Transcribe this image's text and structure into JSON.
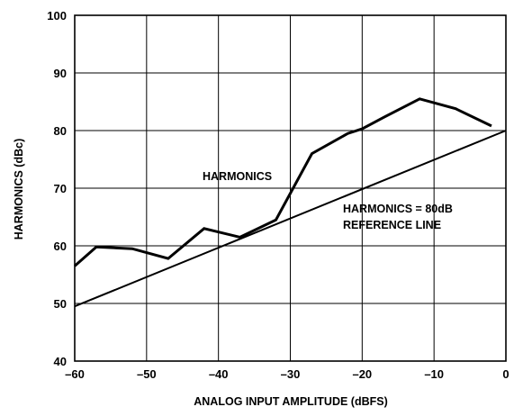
{
  "chart_data": {
    "type": "line",
    "title": "",
    "xlabel": "ANALOG INPUT AMPLITUDE (dBFS)",
    "ylabel": "HARMONICS (dBc)",
    "xlim": [
      -60,
      0
    ],
    "ylim": [
      40,
      100
    ],
    "x_ticks": [
      "–60",
      "–50",
      "–40",
      "–30",
      "–20",
      "–10",
      "0"
    ],
    "y_ticks": [
      "40",
      "50",
      "60",
      "70",
      "80",
      "90",
      "100"
    ],
    "grid": true,
    "legend": "none",
    "series": [
      {
        "label": "HARMONICS",
        "x": [
          -60,
          -57,
          -52,
          -47,
          -42,
          -37,
          -32,
          -27,
          -22,
          -20,
          -17,
          -12,
          -7,
          -2
        ],
        "y": [
          56.5,
          59.8,
          59.5,
          57.8,
          63.0,
          61.5,
          64.5,
          76.0,
          79.5,
          80.3,
          82.3,
          85.5,
          83.8,
          80.8
        ]
      },
      {
        "label": "HARMONICS = 80dB REFERENCE LINE",
        "x": [
          -60,
          0
        ],
        "y": [
          49.5,
          80
        ]
      }
    ],
    "annotations": {
      "harmonics": "HARMONICS",
      "reference_line_1": "HARMONICS = 80dB",
      "reference_line_2": "REFERENCE LINE"
    },
    "colors": {
      "line": "#000000",
      "grid": "#000000",
      "background": "#ffffff"
    }
  }
}
